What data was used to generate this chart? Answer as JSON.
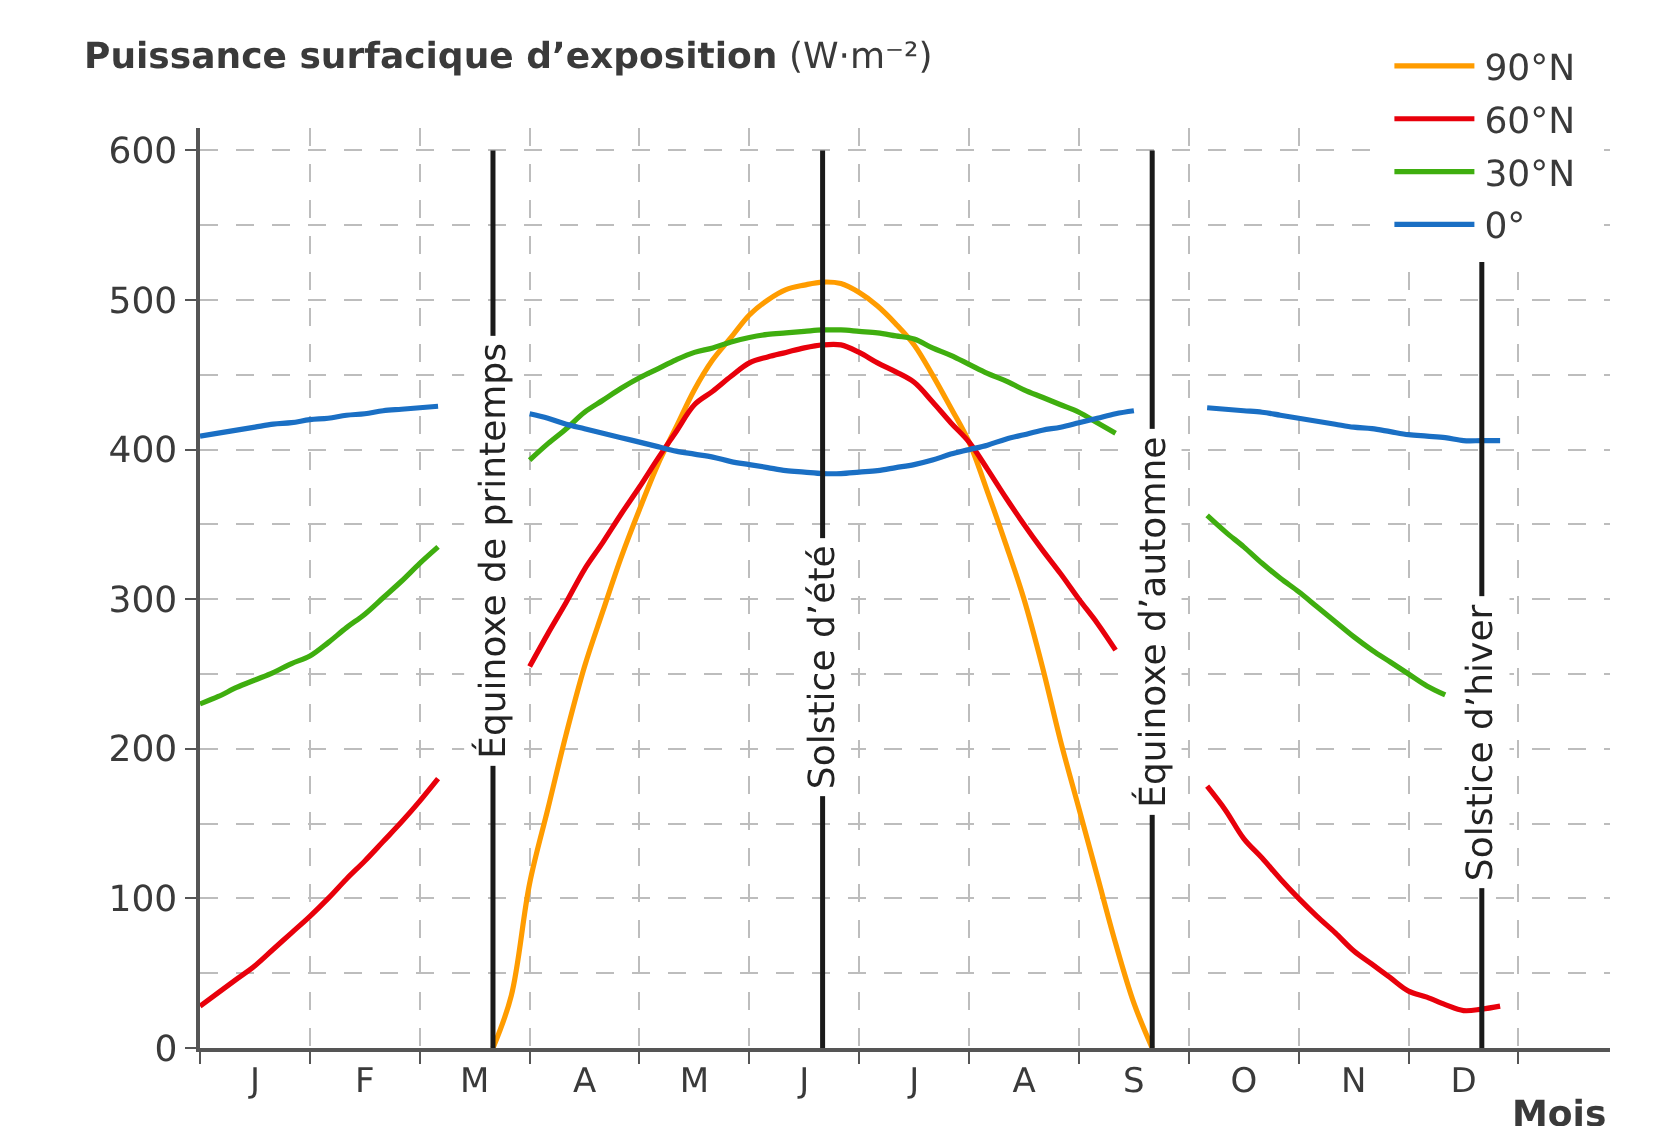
{
  "chart_data": {
    "type": "line",
    "ylabel": "Puissance surfacique d’exposition (W·m⁻²)",
    "xlabel": "Mois",
    "categories": [
      null,
      null,
      null,
      "J",
      null,
      null,
      null,
      null,
      null,
      "F",
      null,
      null,
      null,
      null,
      null,
      "M",
      null,
      null,
      null,
      null,
      null,
      "A",
      null,
      null,
      null,
      null,
      null,
      "M",
      null,
      null,
      null,
      null,
      null,
      "J",
      null,
      null,
      null,
      null,
      null,
      "J",
      null,
      null,
      null,
      null,
      null,
      "A",
      null,
      null,
      null,
      null,
      null,
      "S",
      null,
      null,
      null,
      null,
      null,
      "O",
      null,
      null,
      null,
      null,
      null,
      "N",
      null,
      null,
      null,
      null,
      null,
      "D",
      null,
      null,
      null,
      null,
      null,
      null,
      null,
      null
    ],
    "ylim": [
      0,
      615
    ],
    "yticks": [
      0,
      100,
      200,
      300,
      400,
      500,
      600,
      {
        "value": 50,
        "label": null
      },
      {
        "value": 150,
        "label": null
      },
      {
        "value": 250,
        "label": null
      },
      {
        "value": 350,
        "label": null
      },
      {
        "value": 450,
        "label": null
      },
      {
        "value": 550,
        "label": null
      }
    ],
    "grid": true,
    "legend": "top right",
    "line_style": "solid",
    "series": [
      {
        "name": "90°N",
        "color": "#ff9c00",
        "values": [
          null,
          null,
          null,
          null,
          null,
          null,
          null,
          null,
          null,
          null,
          null,
          null,
          null,
          null,
          null,
          null,
          0,
          35,
          110,
          160,
          210,
          255,
          292,
          328,
          360,
          390,
          415,
          440,
          460,
          475,
          490,
          500,
          507,
          510,
          512,
          511,
          505,
          496,
          484,
          470,
          450,
          428,
          405,
          372,
          337,
          300,
          255,
          205,
          160,
          115,
          70,
          30,
          0,
          null,
          null,
          null,
          null,
          null,
          null,
          null,
          null,
          null,
          null,
          null,
          null,
          null,
          null,
          null,
          null,
          null,
          null,
          null,
          null,
          null,
          null,
          null,
          null,
          null
        ]
      },
      {
        "name": "60°N",
        "color": "#e8000b",
        "values": [
          28,
          37,
          46,
          55,
          66,
          77,
          88,
          100,
          113,
          125,
          138,
          151,
          165,
          180,
          null,
          null,
          null,
          null,
          255,
          277,
          298,
          320,
          338,
          357,
          375,
          394,
          412,
          430,
          439,
          449,
          458,
          462,
          465,
          468,
          470,
          470,
          465,
          458,
          452,
          445,
          432,
          418,
          405,
          387,
          368,
          350,
          333,
          317,
          300,
          284,
          266,
          null,
          null,
          null,
          null,
          175,
          159,
          140,
          127,
          113,
          100,
          88,
          77,
          65,
          56,
          47,
          38,
          34,
          29,
          25,
          26,
          28,
          null,
          null,
          null,
          null,
          null,
          null
        ]
      },
      {
        "name": "30°N",
        "color": "#3fae0f",
        "values": [
          230,
          235,
          241,
          246,
          251,
          257,
          262,
          271,
          281,
          290,
          301,
          312,
          324,
          335,
          null,
          null,
          null,
          null,
          393,
          404,
          414,
          425,
          433,
          441,
          448,
          454,
          460,
          465,
          468,
          472,
          475,
          477,
          478,
          479,
          480,
          480,
          479,
          478,
          476,
          474,
          468,
          463,
          457,
          451,
          446,
          440,
          435,
          430,
          425,
          418,
          411,
          null,
          null,
          null,
          null,
          356,
          345,
          335,
          324,
          314,
          305,
          295,
          285,
          275,
          266,
          258,
          250,
          242,
          236,
          null,
          null,
          null,
          null,
          null,
          null,
          null,
          null,
          null
        ]
      },
      {
        "name": "0°",
        "color": "#1a6fc4",
        "values": [
          409,
          411,
          413,
          415,
          417,
          418,
          420,
          421,
          423,
          424,
          426,
          427,
          428,
          429,
          null,
          null,
          null,
          null,
          424,
          421,
          417,
          414,
          411,
          408,
          405,
          402,
          399,
          397,
          395,
          392,
          390,
          388,
          386,
          385,
          384,
          384,
          385,
          386,
          388,
          390,
          393,
          397,
          400,
          403,
          407,
          410,
          413,
          415,
          418,
          421,
          424,
          426,
          null,
          null,
          null,
          428,
          427,
          426,
          425,
          423,
          421,
          419,
          417,
          415,
          414,
          412,
          410,
          409,
          408,
          406,
          406,
          406,
          null,
          null,
          null,
          null,
          null,
          null
        ]
      }
    ],
    "annotations": [
      "Équinoxe de printemps",
      "Solstice d’été",
      "Équinoxe d’automne",
      "Solstice d’hiver"
    ]
  }
}
